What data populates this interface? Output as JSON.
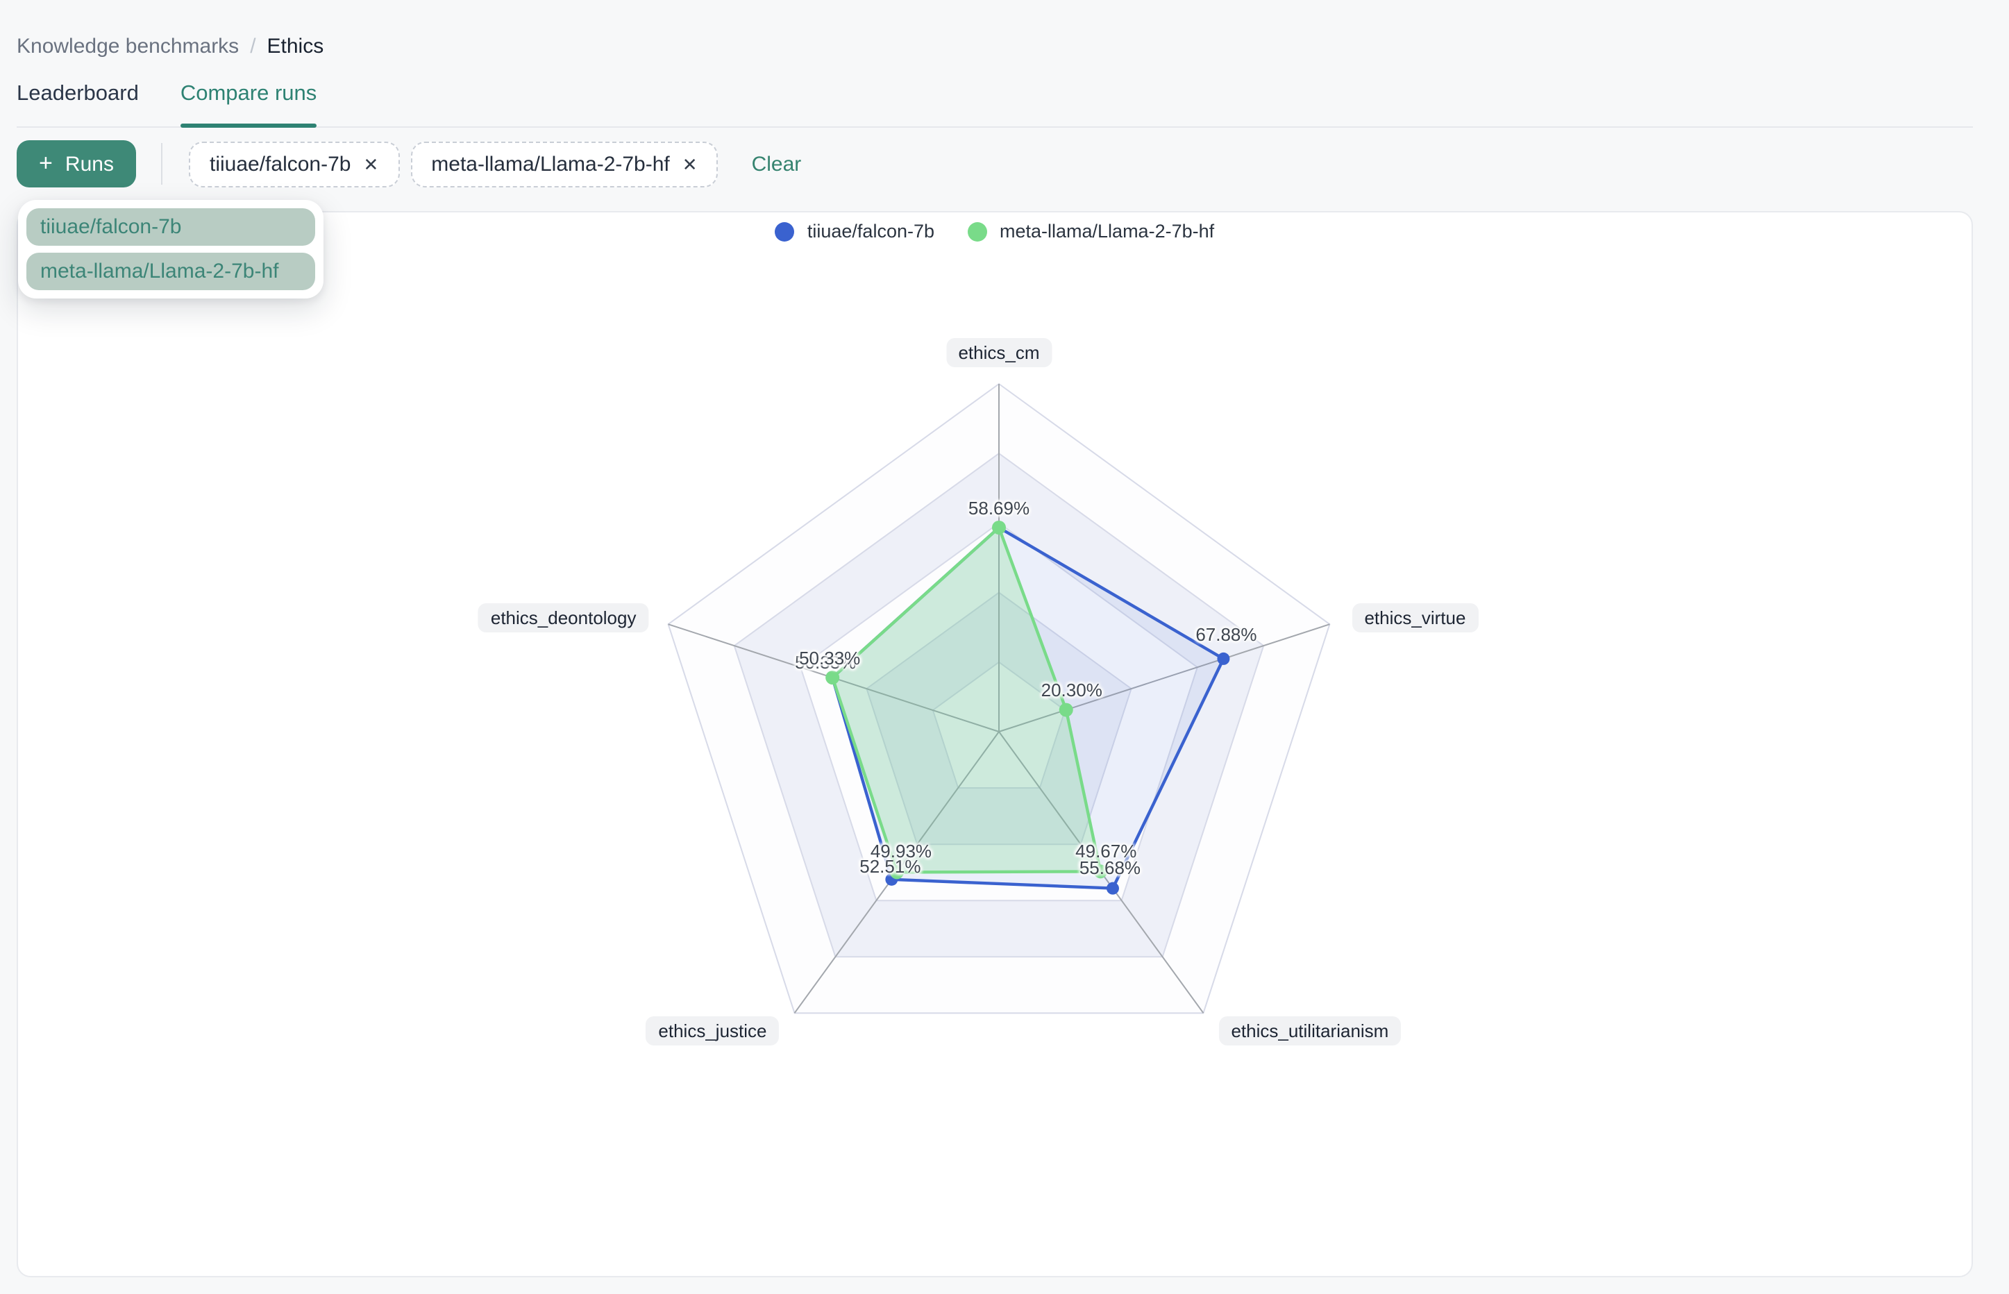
{
  "breadcrumb": {
    "parent": "Knowledge benchmarks",
    "separator": "/",
    "current": "Ethics"
  },
  "tabs": [
    {
      "label": "Leaderboard",
      "active": false
    },
    {
      "label": "Compare runs",
      "active": true
    }
  ],
  "toolbar": {
    "add_runs_label": "Runs",
    "clear_label": "Clear",
    "chips": [
      {
        "label": "tiiuae/falcon-7b"
      },
      {
        "label": "meta-llama/Llama-2-7b-hf"
      }
    ]
  },
  "icons": {
    "plus": "+",
    "close": "✕"
  },
  "dropdown": {
    "items": [
      {
        "label": "tiiuae/falcon-7b"
      },
      {
        "label": "meta-llama/Llama-2-7b-hf"
      }
    ]
  },
  "legend": [
    {
      "label": "tiiuae/falcon-7b",
      "color": "#3a62cf"
    },
    {
      "label": "meta-llama/Llama-2-7b-hf",
      "color": "#79db89"
    }
  ],
  "colors": {
    "accent_teal": "#3e8977",
    "teal_text": "#35836f",
    "dropdown_item_bg": "#b8ccc3",
    "page_bg": "#f7f8f9",
    "card_border": "#e8eaee",
    "series_blue": "#3a62cf",
    "series_green": "#79db89"
  },
  "chart_data": {
    "type": "radar",
    "title": "",
    "axes": [
      "ethics_cm",
      "ethics_virtue",
      "ethics_utilitarianism",
      "ethics_justice",
      "ethics_deontology"
    ],
    "scale": {
      "min": 0,
      "max": 100,
      "rings": 5
    },
    "legend_position": "top",
    "grid": {
      "band_colors": [
        "#fdfdfe",
        "#eef0f8"
      ],
      "ring_color": "#d7dae8",
      "spoke_color": "#a3a7ad"
    },
    "series": [
      {
        "name": "tiiuae/falcon-7b",
        "color": "#3a62cf",
        "fill": "rgba(58,98,207,0.09)",
        "dot_radius": 4.5,
        "values": [
          58.69,
          67.88,
          55.68,
          52.51,
          50.33
        ],
        "label_visible": [
          false,
          true,
          true,
          true,
          true
        ]
      },
      {
        "name": "meta-llama/Llama-2-7b-hf",
        "color": "#79db89",
        "fill": "rgba(121,219,137,0.26)",
        "dot_radius": 5,
        "values": [
          58.69,
          20.3,
          49.67,
          49.93,
          50.33
        ],
        "label_visible": [
          true,
          true,
          true,
          true,
          true
        ]
      }
    ]
  }
}
